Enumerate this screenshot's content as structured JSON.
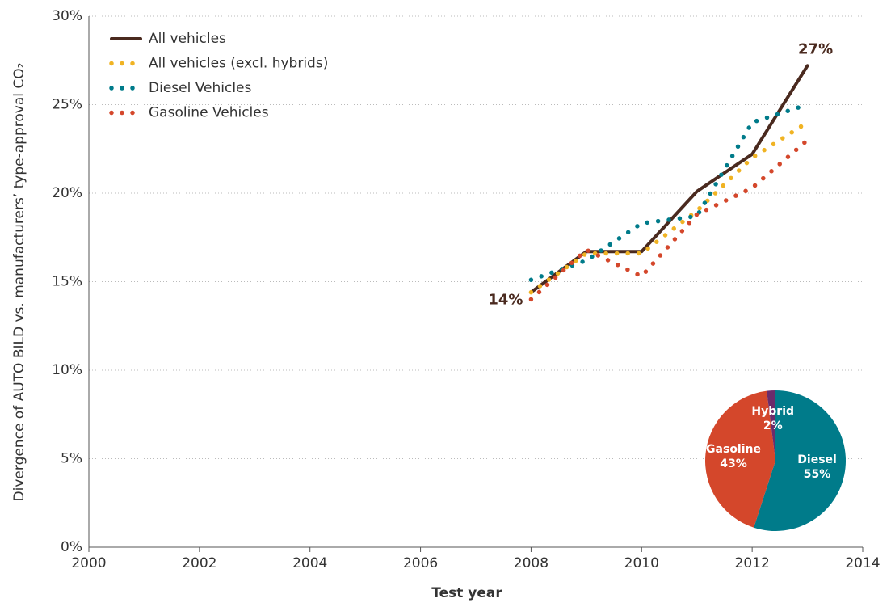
{
  "chart_data": [
    {
      "type": "line",
      "xlabel": "Test year",
      "ylabel": "Divergence of AUTO BILD vs. manufacturers’ type-approval CO₂",
      "xlim": [
        2000,
        2014
      ],
      "xticks": [
        2000,
        2002,
        2004,
        2006,
        2008,
        2010,
        2012,
        2014
      ],
      "ylim": [
        0,
        30
      ],
      "yticks": [
        {
          "value": 0,
          "label": "0%"
        },
        {
          "value": 5,
          "label": "5%"
        },
        {
          "value": 10,
          "label": "10%"
        },
        {
          "value": 15,
          "label": "15%"
        },
        {
          "value": 20,
          "label": "20%"
        },
        {
          "value": 25,
          "label": "25%"
        },
        {
          "value": 30,
          "label": "30%"
        }
      ],
      "grid": true,
      "legend": "upper left",
      "x": [
        2008,
        2009,
        2010,
        2011,
        2012,
        2013
      ],
      "series": [
        {
          "name": "All vehicles",
          "color": "#4a2a1f",
          "style": "solid",
          "values": [
            14.4,
            16.7,
            16.7,
            20.1,
            22.2,
            27.2
          ],
          "value_labels": [
            "14%",
            null,
            null,
            null,
            null,
            "27%"
          ]
        },
        {
          "name": "All vehicles (excl. hybrids)",
          "color": "#f0b323",
          "style": "dotted",
          "values": [
            14.4,
            16.6,
            16.6,
            19.0,
            22.0,
            24.0
          ]
        },
        {
          "name": "Diesel Vehicles",
          "color": "#007b8a",
          "style": "dotted",
          "values": [
            15.1,
            16.2,
            18.3,
            18.7,
            24.0,
            25.0
          ]
        },
        {
          "name": "Gasoline Vehicles",
          "color": "#d4472b",
          "style": "dotted",
          "values": [
            14.0,
            16.8,
            15.3,
            18.8,
            20.3,
            23.0
          ]
        }
      ]
    },
    {
      "type": "pie",
      "categories": [
        "Diesel",
        "Gasoline",
        "Hybrid"
      ],
      "values": [
        55,
        43,
        2
      ],
      "value_labels": [
        "55%",
        "43%",
        "2%"
      ],
      "colors": [
        "#007b8a",
        "#d4472b",
        "#6b2c6b"
      ]
    }
  ]
}
